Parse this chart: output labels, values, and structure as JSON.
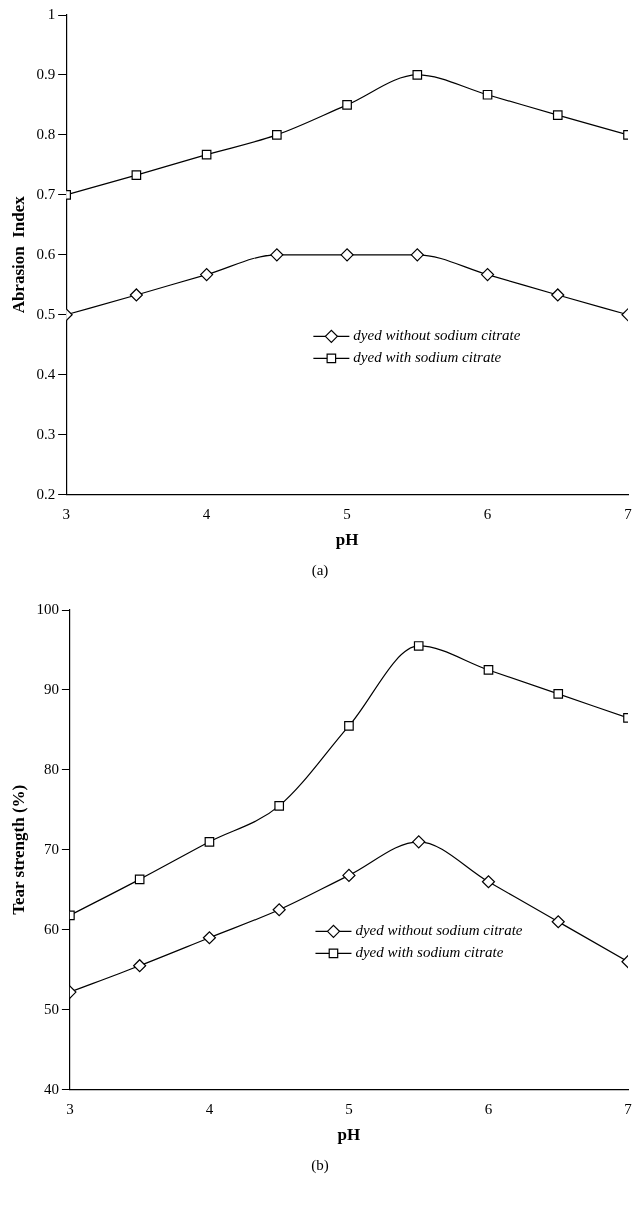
{
  "chart_data": [
    {
      "type": "line",
      "xlabel": "pH",
      "ylabel": "Abrasion  Index",
      "x": [
        3,
        3.5,
        4,
        4.5,
        5,
        5.5,
        6,
        6.5,
        7
      ],
      "xlim": [
        3,
        7
      ],
      "xticks": [
        3,
        4,
        5,
        6,
        7
      ],
      "ylim": [
        0.2,
        1
      ],
      "yticks": [
        0.2,
        0.3,
        0.4,
        0.5,
        0.6,
        0.7,
        0.8,
        0.9,
        1
      ],
      "grid": false,
      "legend": "bottom right",
      "line_style": "solid",
      "annotations": [
        "(a)"
      ],
      "series": [
        {
          "name": "dyed without sodium citrate",
          "color": "#000000",
          "marker": "diamond",
          "values": [
            0.5,
            0.533,
            0.567,
            0.6,
            0.6,
            0.6,
            0.567,
            0.533,
            0.5
          ]
        },
        {
          "name": "dyed with sodium citrate",
          "color": "#000000",
          "marker": "square",
          "values": [
            0.7,
            0.733,
            0.767,
            0.8,
            0.85,
            0.9,
            0.867,
            0.833,
            0.8
          ]
        }
      ]
    },
    {
      "type": "line",
      "xlabel": "pH",
      "ylabel": "Tear strength (%)",
      "x": [
        3,
        3.5,
        4,
        4.5,
        5,
        5.5,
        6,
        6.5,
        7
      ],
      "xlim": [
        3,
        7
      ],
      "xticks": [
        3,
        4,
        5,
        6,
        7
      ],
      "ylim": [
        40,
        100
      ],
      "yticks": [
        40,
        50,
        60,
        70,
        80,
        90,
        100
      ],
      "grid": false,
      "legend": "bottom right",
      "line_style": "solid",
      "annotations": [
        "(b)"
      ],
      "series": [
        {
          "name": "dyed without sodium citrate",
          "color": "#000000",
          "marker": "diamond",
          "values": [
            52.2,
            55.5,
            59,
            62.5,
            66.8,
            71,
            66,
            61,
            56
          ]
        },
        {
          "name": "dyed with sodium citrate",
          "color": "#000000",
          "marker": "square",
          "values": [
            61.8,
            66.3,
            71,
            75.5,
            85.5,
            95.5,
            92.5,
            89.5,
            86.5
          ]
        }
      ]
    }
  ]
}
